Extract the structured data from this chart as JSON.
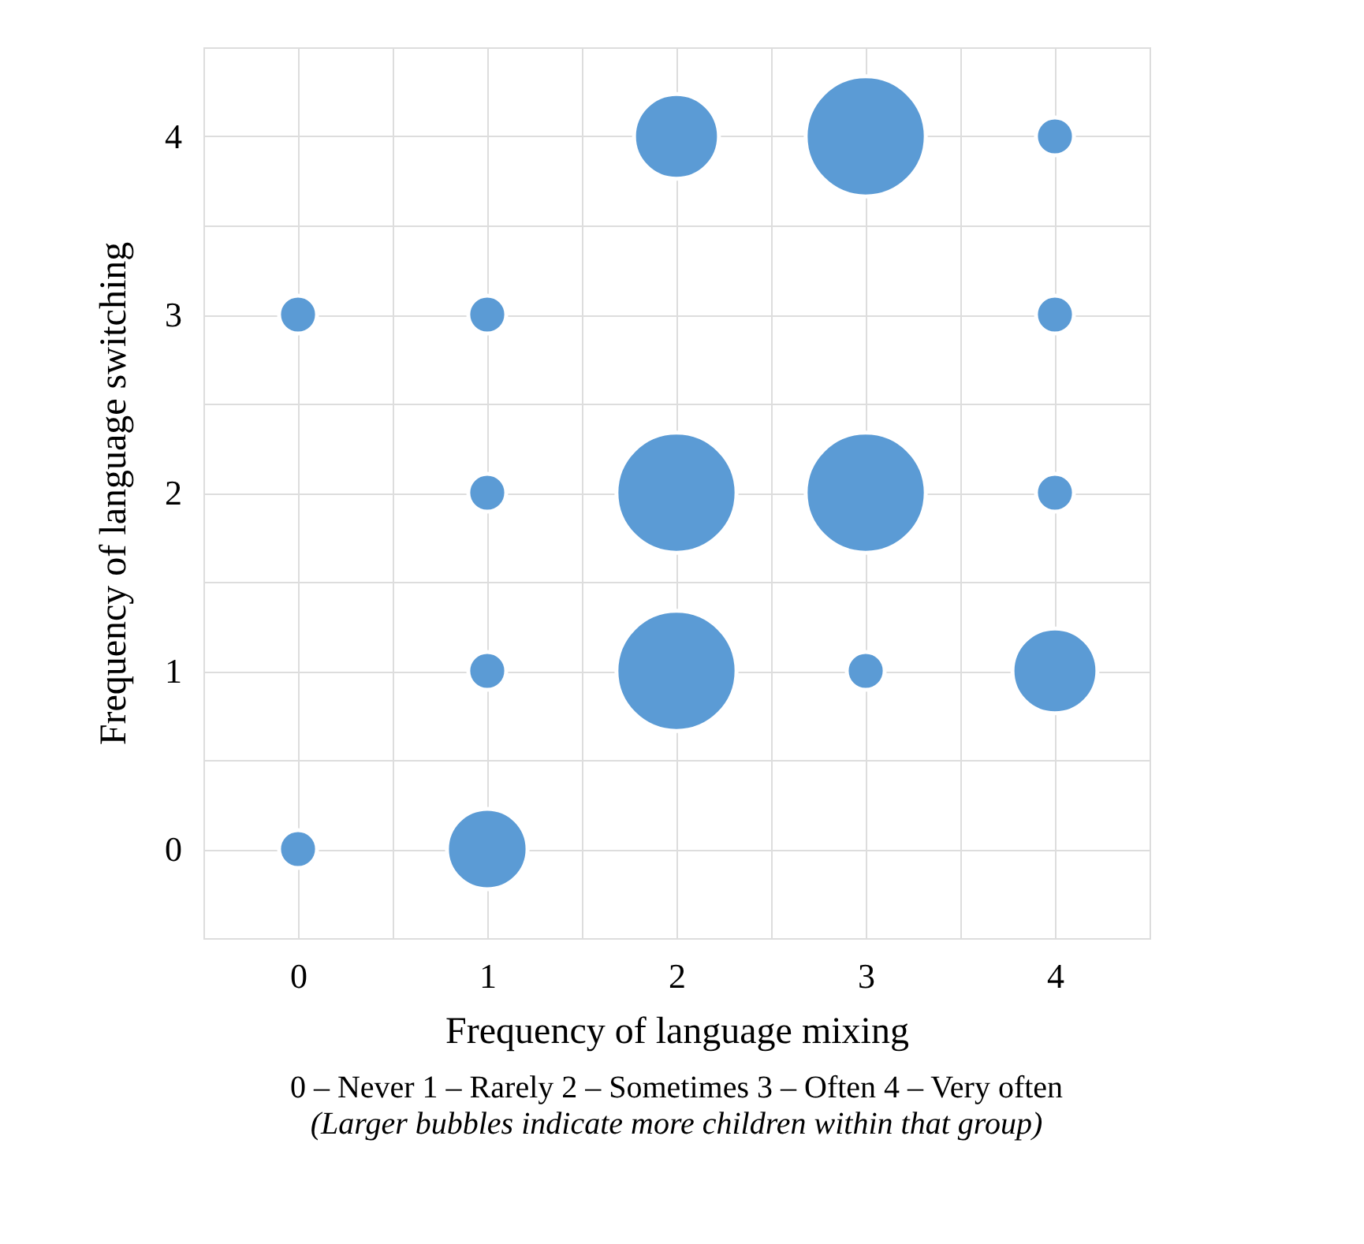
{
  "chart_data": {
    "type": "bubble",
    "xlabel": "Frequency of language mixing",
    "ylabel": "Frequency of language switching",
    "x": [
      2,
      3,
      4,
      0,
      1,
      4,
      1,
      2,
      3,
      4,
      1,
      2,
      3,
      4,
      0,
      1
    ],
    "series": [
      {
        "color": "#5b9bd5",
        "values": [
          4,
          4,
          4,
          3,
          3,
          3,
          2,
          2,
          2,
          2,
          1,
          1,
          1,
          1,
          0,
          0
        ],
        "sizes": [
          0.5,
          1,
          0.1,
          0.1,
          0.1,
          0.1,
          0.1,
          1,
          1,
          0.1,
          0.1,
          1,
          0.1,
          0.5,
          0.1,
          0.45
        ]
      }
    ],
    "xlim": [
      -0.5,
      4.5
    ],
    "ylim": [
      -0.5,
      4.5
    ],
    "xticks": [
      0,
      {
        "value": 0.5,
        "label": null
      },
      1,
      {
        "value": 1.5,
        "label": null
      },
      2,
      {
        "value": 2.5,
        "label": null
      },
      3,
      {
        "value": 3.5,
        "label": null
      },
      4
    ],
    "yticks": [
      0,
      {
        "value": 0.5,
        "label": null
      },
      1,
      {
        "value": 1.5,
        "label": null
      },
      2,
      {
        "value": 2.5,
        "label": null
      },
      3,
      {
        "value": 3.5,
        "label": null
      },
      4
    ],
    "grid": true,
    "legend": false,
    "annotations": [
      "0 – Never        1 – Rarely        2 – Sometimes    3 – Often        4 – Very often",
      "(Larger bubbles indicate more children within that group)"
    ]
  }
}
